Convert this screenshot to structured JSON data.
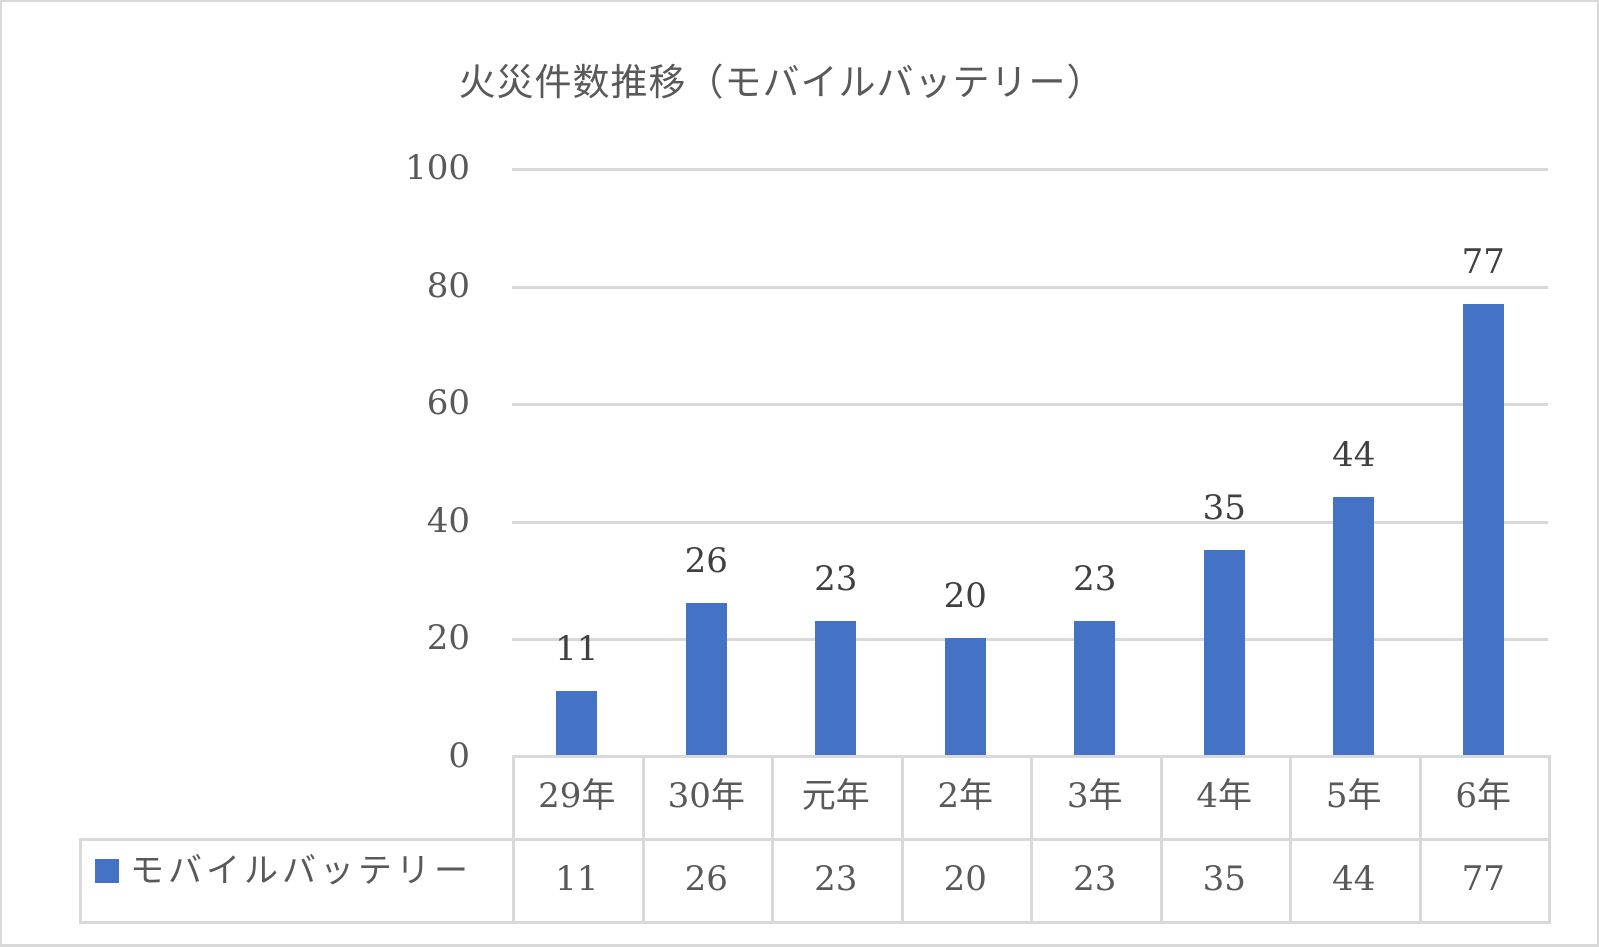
{
  "chart_data": {
    "type": "bar",
    "title": "火災件数推移（モバイルバッテリー）",
    "xlabel": "",
    "ylabel": "",
    "categories": [
      "29年",
      "30年",
      "元年",
      "2年",
      "3年",
      "4年",
      "5年",
      "6年"
    ],
    "series": [
      {
        "name": "モバイルバッテリー",
        "color": "#4472C4",
        "values": [
          11,
          26,
          23,
          20,
          23,
          35,
          44,
          77
        ]
      }
    ],
    "ylim": [
      0,
      100
    ],
    "yticks": [
      0,
      20,
      40,
      60,
      80,
      100
    ],
    "grid": true,
    "legend_position": "data-table",
    "data_labels": true,
    "data_table": true
  },
  "title": "火災件数推移（モバイルバッテリー）",
  "yaxis": {
    "ticks": [
      "100",
      "80",
      "60",
      "40",
      "20",
      "0"
    ]
  },
  "categories": [
    "29年",
    "30年",
    "元年",
    "2年",
    "3年",
    "4年",
    "5年",
    "6年"
  ],
  "values": [
    "11",
    "26",
    "23",
    "20",
    "23",
    "35",
    "44",
    "77"
  ],
  "legend": {
    "label": "モバイルバッテリー",
    "color": "#4472C4"
  }
}
